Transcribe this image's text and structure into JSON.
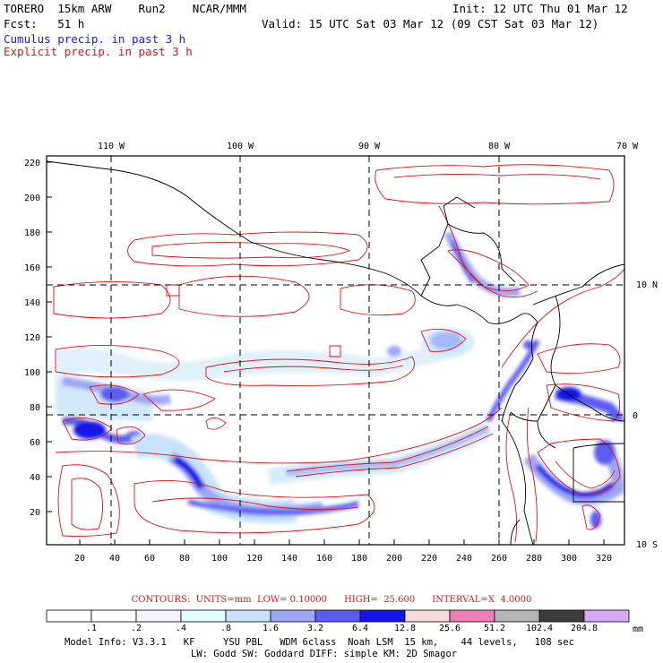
{
  "header": {
    "model_line": "TORERO  15km ARW    Run2    NCAR/MMM",
    "init": "Init: 12 UTC Thu 01 Mar 12",
    "fcst": "Fcst:   51 h",
    "valid": "Valid: 15 UTC Sat 03 Mar 12 (09 CST Sat 03 Mar 12)",
    "legend_cumulus": "Cumulus precip. in past 3 h",
    "legend_explicit": "Explicit precip. in past 3 h"
  },
  "map": {
    "top_longitudes": [
      "110 W",
      "100 W",
      "90 W",
      "80 W",
      "70 W"
    ],
    "right_latitudes": [
      "10 N",
      "0",
      "10 S"
    ],
    "left_ticks": [
      "220",
      "200",
      "180",
      "160",
      "140",
      "120",
      "100",
      "80",
      "60",
      "40",
      "20"
    ],
    "bottom_ticks": [
      "20",
      "40",
      "60",
      "80",
      "100",
      "120",
      "140",
      "160",
      "180",
      "200",
      "220",
      "240",
      "260",
      "280",
      "300",
      "320"
    ]
  },
  "contours_line": "CONTOURS:  UNITS=mm  LOW= 0.10000      HIGH=  25.600      INTERVAL=X  4.0000",
  "colorbar": {
    "labels": [
      ".1",
      ".2",
      ".4",
      ".8",
      "1.6",
      "3.2",
      "6.4",
      "12.8",
      "25.6",
      "51.2",
      "102.4",
      "204.8"
    ],
    "unit": "mm",
    "colors": [
      "#ffffff",
      "#ffffff",
      "#f2f2ff",
      "#e1fcfc",
      "#c7e2fa",
      "#9da5f5",
      "#5b5bf0",
      "#1414e8",
      "#f7dada",
      "#f07cb8",
      "#b4b4b4",
      "#3c3c3c",
      "#d7a8f5"
    ]
  },
  "footer": {
    "line1": "Model Info: V3.3.1   KF     YSU PBL   WDM 6class  Noah LSM  15 km,    44 levels,   108 sec",
    "line2": "LW: Godd SW: Goddard DIFF: simple KM: 2D Smagor"
  }
}
